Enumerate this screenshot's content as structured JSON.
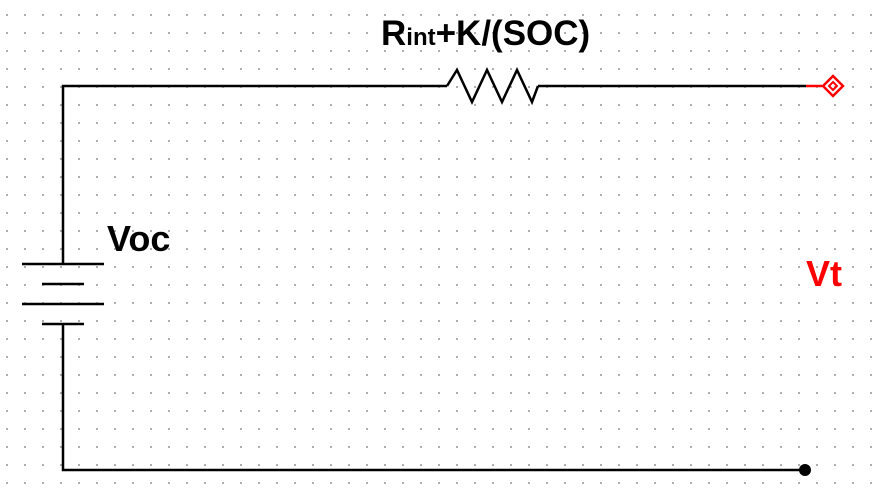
{
  "colors": {
    "wire": "#000000",
    "probe": "#ff0000"
  },
  "resistor": {
    "label_main": "R",
    "label_sub": "int",
    "label_rest": "+K/(SOC)"
  },
  "battery": {
    "label": "Voc"
  },
  "probe": {
    "label": "Vt",
    "icon": "diamond-probe-icon"
  },
  "ground_node": {
    "icon": "filled-dot-icon"
  }
}
